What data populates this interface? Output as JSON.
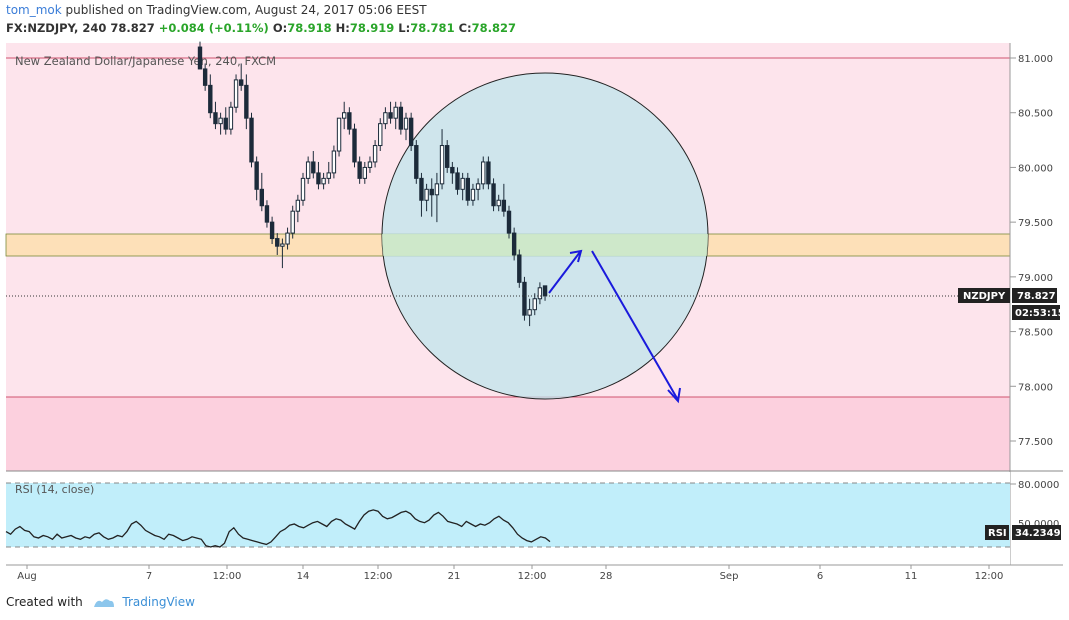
{
  "header": {
    "user": "tom_mok",
    "published_text": "published on TradingView.com, August 24, 2017 05:06 EEST",
    "symbol_line": "FX:NZDJPY, 240  78.827",
    "change": "+0.084 (+0.11%)",
    "o_label": "O:",
    "o_value": "78.918",
    "h_label": "H:",
    "h_value": "78.919",
    "l_label": "L:",
    "l_value": "78.781",
    "c_label": "C:",
    "c_value": "78.827"
  },
  "chart_title": "New Zealand Dollar/Japanese Yen, 240, FXCM",
  "price_axis": {
    "ticks": [
      "81.000",
      "80.500",
      "80.000",
      "79.500",
      "79.000",
      "78.500",
      "78.000",
      "77.500"
    ],
    "tick_values": [
      81.0,
      80.5,
      80.0,
      79.5,
      79.0,
      78.5,
      78.0,
      77.5
    ],
    "symbol_tag": "NZDJPY",
    "price_tag": "78.827",
    "countdown": "02:53:15"
  },
  "zones": {
    "resistance_line": 81.0,
    "orange_zone": [
      79.18,
      79.38
    ],
    "support_zone_top": 77.9,
    "colors": {
      "background": "#fde4ec",
      "orange": "#fde0b8",
      "support": "#fcd0de",
      "line": "#d0556f",
      "circle": "#c8ecef",
      "arrow": "#1a1adc"
    }
  },
  "rsi": {
    "label": "RSI (14, close)",
    "axis_top": "80.0000",
    "axis_mid": "50.0000",
    "tag_label": "RSI",
    "tag_value": "34.2349",
    "band_color": "#c1eefa",
    "line_color": "#222222"
  },
  "time_axis": {
    "labels": [
      "Aug",
      "7",
      "12:00",
      "14",
      "12:00",
      "21",
      "12:00",
      "28",
      "Sep",
      "6",
      "11",
      "12:00"
    ]
  },
  "footer": {
    "created_with": "Created with",
    "brand": "TradingView"
  },
  "chart_data": {
    "type": "candlestick",
    "title": "New Zealand Dollar/Japanese Yen, 240, FXCM",
    "ylim": [
      77.25,
      81.1
    ],
    "candles": [
      {
        "o": 81.1,
        "h": 81.15,
        "l": 80.9,
        "c": 80.9
      },
      {
        "o": 80.9,
        "h": 80.95,
        "l": 80.7,
        "c": 80.75
      },
      {
        "o": 80.75,
        "h": 80.85,
        "l": 80.45,
        "c": 80.5
      },
      {
        "o": 80.5,
        "h": 80.6,
        "l": 80.35,
        "c": 80.4
      },
      {
        "o": 80.4,
        "h": 80.5,
        "l": 80.3,
        "c": 80.45
      },
      {
        "o": 80.45,
        "h": 80.55,
        "l": 80.3,
        "c": 80.35
      },
      {
        "o": 80.35,
        "h": 80.6,
        "l": 80.3,
        "c": 80.55
      },
      {
        "o": 80.55,
        "h": 80.85,
        "l": 80.5,
        "c": 80.8
      },
      {
        "o": 80.8,
        "h": 80.95,
        "l": 80.7,
        "c": 80.75
      },
      {
        "o": 80.75,
        "h": 80.85,
        "l": 80.35,
        "c": 80.45
      },
      {
        "o": 80.45,
        "h": 80.5,
        "l": 80.0,
        "c": 80.05
      },
      {
        "o": 80.05,
        "h": 80.1,
        "l": 79.7,
        "c": 79.8
      },
      {
        "o": 79.8,
        "h": 79.95,
        "l": 79.6,
        "c": 79.65
      },
      {
        "o": 79.65,
        "h": 79.7,
        "l": 79.45,
        "c": 79.5
      },
      {
        "o": 79.5,
        "h": 79.55,
        "l": 79.3,
        "c": 79.35
      },
      {
        "o": 79.35,
        "h": 79.4,
        "l": 79.2,
        "c": 79.28
      },
      {
        "o": 79.28,
        "h": 79.35,
        "l": 79.08,
        "c": 79.3
      },
      {
        "o": 79.3,
        "h": 79.45,
        "l": 79.25,
        "c": 79.4
      },
      {
        "o": 79.4,
        "h": 79.65,
        "l": 79.35,
        "c": 79.6
      },
      {
        "o": 79.6,
        "h": 79.75,
        "l": 79.5,
        "c": 79.7
      },
      {
        "o": 79.7,
        "h": 79.95,
        "l": 79.65,
        "c": 79.9
      },
      {
        "o": 79.9,
        "h": 80.1,
        "l": 79.85,
        "c": 80.05
      },
      {
        "o": 80.05,
        "h": 80.15,
        "l": 79.9,
        "c": 79.95
      },
      {
        "o": 79.95,
        "h": 80.05,
        "l": 79.8,
        "c": 79.85
      },
      {
        "o": 79.85,
        "h": 79.95,
        "l": 79.8,
        "c": 79.9
      },
      {
        "o": 79.9,
        "h": 80.05,
        "l": 79.85,
        "c": 79.95
      },
      {
        "o": 79.95,
        "h": 80.2,
        "l": 79.9,
        "c": 80.15
      },
      {
        "o": 80.15,
        "h": 80.45,
        "l": 80.1,
        "c": 80.45
      },
      {
        "o": 80.45,
        "h": 80.6,
        "l": 80.35,
        "c": 80.5
      },
      {
        "o": 80.5,
        "h": 80.55,
        "l": 80.3,
        "c": 80.35
      },
      {
        "o": 80.35,
        "h": 80.4,
        "l": 80.0,
        "c": 80.05
      },
      {
        "o": 80.05,
        "h": 80.1,
        "l": 79.85,
        "c": 79.9
      },
      {
        "o": 79.9,
        "h": 80.05,
        "l": 79.85,
        "c": 80.0
      },
      {
        "o": 80.0,
        "h": 80.1,
        "l": 79.95,
        "c": 80.05
      },
      {
        "o": 80.05,
        "h": 80.25,
        "l": 80.0,
        "c": 80.2
      },
      {
        "o": 80.2,
        "h": 80.45,
        "l": 80.15,
        "c": 80.4
      },
      {
        "o": 80.4,
        "h": 80.55,
        "l": 80.35,
        "c": 80.5
      },
      {
        "o": 80.5,
        "h": 80.6,
        "l": 80.4,
        "c": 80.45
      },
      {
        "o": 80.45,
        "h": 80.6,
        "l": 80.35,
        "c": 80.55
      },
      {
        "o": 80.55,
        "h": 80.6,
        "l": 80.3,
        "c": 80.35
      },
      {
        "o": 80.35,
        "h": 80.5,
        "l": 80.25,
        "c": 80.45
      },
      {
        "o": 80.45,
        "h": 80.5,
        "l": 80.15,
        "c": 80.2
      },
      {
        "o": 80.2,
        "h": 80.25,
        "l": 79.85,
        "c": 79.9
      },
      {
        "o": 79.9,
        "h": 79.95,
        "l": 79.55,
        "c": 79.7
      },
      {
        "o": 79.7,
        "h": 79.85,
        "l": 79.6,
        "c": 79.8
      },
      {
        "o": 79.8,
        "h": 79.9,
        "l": 79.55,
        "c": 79.75
      },
      {
        "o": 79.75,
        "h": 79.95,
        "l": 79.5,
        "c": 79.85
      },
      {
        "o": 79.85,
        "h": 80.35,
        "l": 79.8,
        "c": 80.2
      },
      {
        "o": 80.2,
        "h": 80.25,
        "l": 79.95,
        "c": 80.0
      },
      {
        "o": 80.0,
        "h": 80.05,
        "l": 79.85,
        "c": 79.95
      },
      {
        "o": 79.95,
        "h": 80.0,
        "l": 79.75,
        "c": 79.8
      },
      {
        "o": 79.8,
        "h": 79.95,
        "l": 79.7,
        "c": 79.9
      },
      {
        "o": 79.9,
        "h": 79.95,
        "l": 79.65,
        "c": 79.7
      },
      {
        "o": 79.7,
        "h": 79.85,
        "l": 79.65,
        "c": 79.8
      },
      {
        "o": 79.8,
        "h": 79.9,
        "l": 79.7,
        "c": 79.85
      },
      {
        "o": 79.85,
        "h": 80.1,
        "l": 79.8,
        "c": 80.05
      },
      {
        "o": 80.05,
        "h": 80.1,
        "l": 79.8,
        "c": 79.85
      },
      {
        "o": 79.85,
        "h": 79.9,
        "l": 79.6,
        "c": 79.65
      },
      {
        "o": 79.65,
        "h": 79.75,
        "l": 79.6,
        "c": 79.7
      },
      {
        "o": 79.7,
        "h": 79.85,
        "l": 79.55,
        "c": 79.6
      },
      {
        "o": 79.6,
        "h": 79.65,
        "l": 79.35,
        "c": 79.4
      },
      {
        "o": 79.4,
        "h": 79.45,
        "l": 79.15,
        "c": 79.2
      },
      {
        "o": 79.2,
        "h": 79.25,
        "l": 78.9,
        "c": 78.95
      },
      {
        "o": 78.95,
        "h": 79.0,
        "l": 78.6,
        "c": 78.65
      },
      {
        "o": 78.65,
        "h": 78.8,
        "l": 78.55,
        "c": 78.7
      },
      {
        "o": 78.7,
        "h": 78.85,
        "l": 78.65,
        "c": 78.8
      },
      {
        "o": 78.8,
        "h": 78.95,
        "l": 78.75,
        "c": 78.9
      },
      {
        "o": 78.918,
        "h": 78.919,
        "l": 78.781,
        "c": 78.827
      }
    ],
    "rsi_values": [
      42,
      40,
      44,
      46,
      43,
      42,
      38,
      37,
      39,
      38,
      36,
      40,
      37,
      38,
      39,
      37,
      36,
      38,
      37,
      40,
      41,
      38,
      36,
      37,
      39,
      38,
      42,
      48,
      50,
      47,
      43,
      41,
      39,
      38,
      36,
      40,
      39,
      37,
      35,
      36,
      38,
      37,
      36,
      31,
      30,
      31,
      30,
      33,
      42,
      45,
      40,
      37,
      36,
      35,
      34,
      33,
      32,
      34,
      38,
      42,
      44,
      47,
      48,
      46,
      45,
      47,
      49,
      50,
      48,
      46,
      50,
      52,
      51,
      48,
      46,
      44,
      50,
      55,
      58,
      59,
      58,
      54,
      52,
      53,
      55,
      57,
      58,
      56,
      52,
      50,
      49,
      51,
      55,
      57,
      54,
      50,
      49,
      48,
      46,
      50,
      48,
      46,
      48,
      47,
      49,
      52,
      54,
      51,
      49,
      45,
      40,
      37,
      35,
      34,
      36,
      38,
      37,
      34.23
    ]
  }
}
